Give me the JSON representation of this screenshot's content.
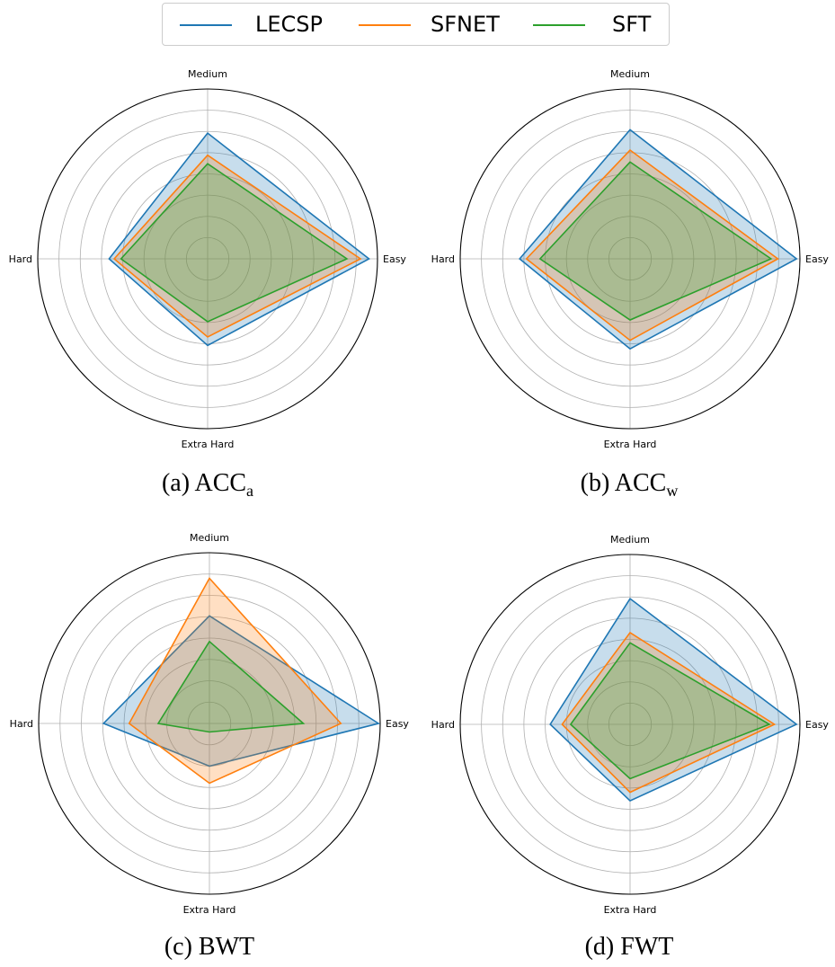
{
  "legend": {
    "items": [
      {
        "label": "LECSP",
        "color": "#1f77b4"
      },
      {
        "label": "SFNET",
        "color": "#ff7f0e"
      },
      {
        "label": "SFT",
        "color": "#2ca02c"
      }
    ]
  },
  "chart_data": [
    {
      "type": "radar",
      "caption": {
        "prefix": "(a) ACC",
        "sub": "a"
      },
      "axes": [
        "Easy",
        "Medium",
        "Hard",
        "Extra Hard"
      ],
      "rlim": [
        0,
        1
      ],
      "grid": true,
      "series": [
        {
          "name": "LECSP",
          "values": [
            0.95,
            0.74,
            0.58,
            0.51
          ]
        },
        {
          "name": "SFNET",
          "values": [
            0.9,
            0.61,
            0.55,
            0.46
          ]
        },
        {
          "name": "SFT",
          "values": [
            0.82,
            0.56,
            0.51,
            0.37
          ]
        }
      ]
    },
    {
      "type": "radar",
      "caption": {
        "prefix": "(b) ACC",
        "sub": "w"
      },
      "axes": [
        "Easy",
        "Medium",
        "Hard",
        "Extra Hard"
      ],
      "rlim": [
        0,
        1
      ],
      "grid": true,
      "series": [
        {
          "name": "LECSP",
          "values": [
            0.98,
            0.76,
            0.65,
            0.53
          ]
        },
        {
          "name": "SFNET",
          "values": [
            0.87,
            0.64,
            0.61,
            0.48
          ]
        },
        {
          "name": "SFT",
          "values": [
            0.83,
            0.57,
            0.53,
            0.36
          ]
        }
      ]
    },
    {
      "type": "radar",
      "caption": {
        "prefix": "(c) BWT",
        "sub": ""
      },
      "axes": [
        "Easy",
        "Medium",
        "Hard",
        "Extra Hard"
      ],
      "rlim": [
        0,
        1
      ],
      "grid": true,
      "series": [
        {
          "name": "LECSP",
          "values": [
            0.99,
            0.63,
            0.62,
            0.25
          ]
        },
        {
          "name": "SFNET",
          "values": [
            0.77,
            0.85,
            0.47,
            0.35
          ]
        },
        {
          "name": "SFT",
          "values": [
            0.55,
            0.48,
            0.3,
            0.05
          ]
        }
      ]
    },
    {
      "type": "radar",
      "caption": {
        "prefix": "(d) FWT",
        "sub": ""
      },
      "axes": [
        "Easy",
        "Medium",
        "Hard",
        "Extra Hard"
      ],
      "rlim": [
        0,
        1
      ],
      "grid": true,
      "series": [
        {
          "name": "LECSP",
          "values": [
            0.98,
            0.74,
            0.47,
            0.45
          ]
        },
        {
          "name": "SFNET",
          "values": [
            0.85,
            0.54,
            0.4,
            0.4
          ]
        },
        {
          "name": "SFT",
          "values": [
            0.82,
            0.48,
            0.35,
            0.32
          ]
        }
      ]
    }
  ]
}
